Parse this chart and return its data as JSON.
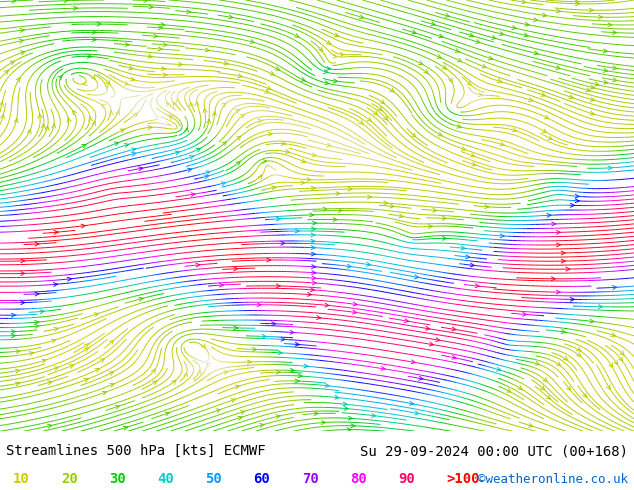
{
  "title_left": "Streamlines 500 hPa [kts] ECMWF",
  "title_right": "Su 29-09-2024 00:00 UTC (00+168)",
  "credit": "©weatheronline.co.uk",
  "legend_values": [
    "10",
    "20",
    "30",
    "40",
    "50",
    "60",
    "70",
    "80",
    "90",
    ">100"
  ],
  "legend_colors": [
    "#cccc00",
    "#99cc00",
    "#00cc00",
    "#00cccc",
    "#0099ff",
    "#0000ff",
    "#9900ff",
    "#ff00ff",
    "#ff0066",
    "#ff0000"
  ],
  "background_color": "#ffffff",
  "fig_width": 6.34,
  "fig_height": 4.9,
  "dpi": 100,
  "title_fontsize": 10,
  "legend_fontsize": 10,
  "credit_fontsize": 9
}
